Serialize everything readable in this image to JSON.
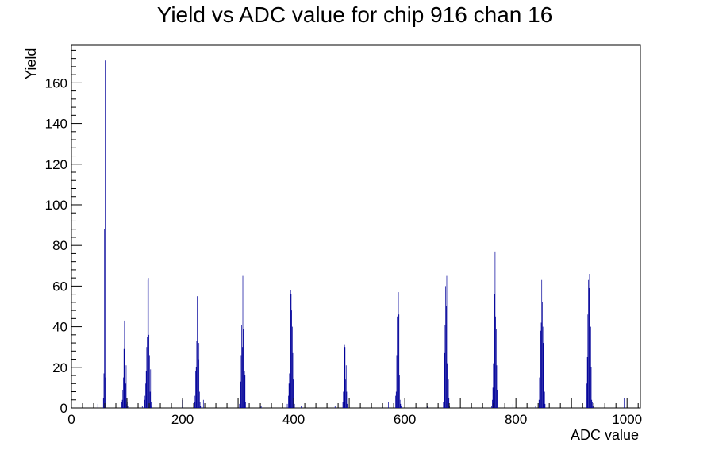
{
  "chart_data": {
    "type": "histogram",
    "title": "Yield vs ADC value for chip 916 chan 16",
    "xlabel": "ADC value",
    "ylabel": "Yield",
    "xlim": [
      0,
      1024
    ],
    "ylim": [
      0,
      178.5
    ],
    "x_ticks": [
      0,
      200,
      400,
      600,
      800,
      1000
    ],
    "y_ticks": [
      0,
      20,
      40,
      60,
      80,
      100,
      120,
      140,
      160
    ],
    "line_color": "#000099",
    "grid": false,
    "legend": false,
    "bin_width": 1,
    "bins": [
      [
        47,
        2
      ],
      [
        57,
        5
      ],
      [
        58,
        17
      ],
      [
        59,
        88
      ],
      [
        60,
        171
      ],
      [
        61,
        15
      ],
      [
        89,
        1
      ],
      [
        90,
        3
      ],
      [
        91,
        4
      ],
      [
        92,
        9
      ],
      [
        93,
        15
      ],
      [
        94,
        29
      ],
      [
        95,
        43
      ],
      [
        96,
        34
      ],
      [
        97,
        12
      ],
      [
        98,
        21
      ],
      [
        99,
        2
      ],
      [
        100,
        3
      ],
      [
        101,
        1
      ],
      [
        127,
        1
      ],
      [
        131,
        4
      ],
      [
        132,
        6
      ],
      [
        133,
        12
      ],
      [
        134,
        18
      ],
      [
        135,
        30
      ],
      [
        136,
        35
      ],
      [
        137,
        63
      ],
      [
        138,
        64
      ],
      [
        139,
        36
      ],
      [
        140,
        26
      ],
      [
        141,
        8
      ],
      [
        142,
        19
      ],
      [
        143,
        3
      ],
      [
        144,
        1
      ],
      [
        199,
        4
      ],
      [
        221,
        3
      ],
      [
        222,
        6
      ],
      [
        223,
        18
      ],
      [
        224,
        20
      ],
      [
        225,
        33
      ],
      [
        226,
        55
      ],
      [
        227,
        49
      ],
      [
        228,
        24
      ],
      [
        229,
        32
      ],
      [
        230,
        8
      ],
      [
        231,
        3
      ],
      [
        232,
        1
      ],
      [
        237,
        4
      ],
      [
        302,
        2
      ],
      [
        303,
        4
      ],
      [
        304,
        13
      ],
      [
        305,
        26
      ],
      [
        306,
        41
      ],
      [
        307,
        30
      ],
      [
        308,
        65
      ],
      [
        309,
        39
      ],
      [
        310,
        52
      ],
      [
        311,
        18
      ],
      [
        312,
        16
      ],
      [
        313,
        3
      ],
      [
        341,
        1
      ],
      [
        388,
        2
      ],
      [
        390,
        6
      ],
      [
        391,
        12
      ],
      [
        392,
        17
      ],
      [
        393,
        23
      ],
      [
        394,
        58
      ],
      [
        395,
        56
      ],
      [
        396,
        48
      ],
      [
        397,
        40
      ],
      [
        398,
        27
      ],
      [
        399,
        14
      ],
      [
        400,
        8
      ],
      [
        401,
        2
      ],
      [
        413,
        1
      ],
      [
        474,
        1
      ],
      [
        488,
        3
      ],
      [
        489,
        8
      ],
      [
        490,
        25
      ],
      [
        491,
        31
      ],
      [
        492,
        30
      ],
      [
        493,
        14
      ],
      [
        494,
        21
      ],
      [
        495,
        8
      ],
      [
        496,
        2
      ],
      [
        570,
        3
      ],
      [
        583,
        6
      ],
      [
        584,
        8
      ],
      [
        585,
        26
      ],
      [
        586,
        45
      ],
      [
        587,
        42
      ],
      [
        588,
        57
      ],
      [
        589,
        46
      ],
      [
        590,
        16
      ],
      [
        591,
        4
      ],
      [
        592,
        2
      ],
      [
        593,
        1
      ],
      [
        640,
        1
      ],
      [
        669,
        3
      ],
      [
        670,
        11
      ],
      [
        671,
        27
      ],
      [
        672,
        41
      ],
      [
        673,
        60
      ],
      [
        674,
        50
      ],
      [
        675,
        65
      ],
      [
        676,
        22
      ],
      [
        677,
        28
      ],
      [
        678,
        14
      ],
      [
        679,
        5
      ],
      [
        680,
        1
      ],
      [
        756,
        1
      ],
      [
        757,
        4
      ],
      [
        758,
        10
      ],
      [
        759,
        22
      ],
      [
        760,
        44
      ],
      [
        761,
        56
      ],
      [
        762,
        77
      ],
      [
        763,
        45
      ],
      [
        764,
        39
      ],
      [
        765,
        21
      ],
      [
        766,
        9
      ],
      [
        767,
        2
      ],
      [
        794,
        2
      ],
      [
        835,
        1
      ],
      [
        841,
        4
      ],
      [
        842,
        15
      ],
      [
        843,
        21
      ],
      [
        844,
        38
      ],
      [
        845,
        42
      ],
      [
        846,
        63
      ],
      [
        847,
        52
      ],
      [
        848,
        40
      ],
      [
        849,
        32
      ],
      [
        850,
        9
      ],
      [
        851,
        8
      ],
      [
        852,
        2
      ],
      [
        926,
        5
      ],
      [
        927,
        12
      ],
      [
        928,
        25
      ],
      [
        929,
        46
      ],
      [
        930,
        63
      ],
      [
        931,
        59
      ],
      [
        932,
        66
      ],
      [
        933,
        48
      ],
      [
        934,
        40
      ],
      [
        935,
        20
      ],
      [
        936,
        4
      ],
      [
        937,
        3
      ],
      [
        938,
        1
      ],
      [
        994,
        5
      ]
    ]
  }
}
